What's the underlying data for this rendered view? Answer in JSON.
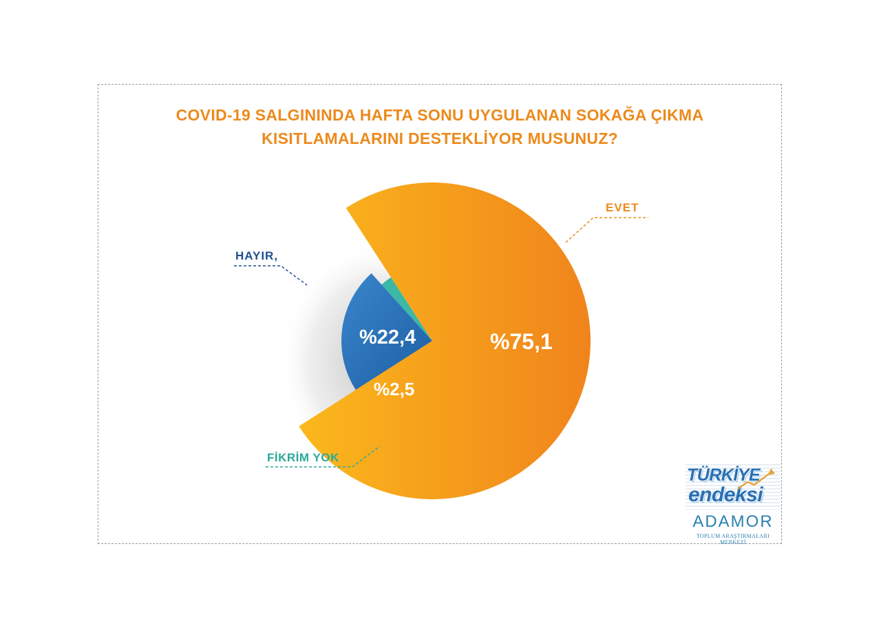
{
  "chart_data": {
    "type": "pie",
    "title": [
      "COVID-19 SALGININDA HAFTA SONU UYGULANAN SOKAĞA ÇIKMA",
      "KISITLAMALARINI DESTEKLİYOR MUSUNUZ?"
    ],
    "slices": [
      {
        "name": "EVET",
        "value": 75.1,
        "value_label": "%75,1",
        "color": "#f5a01e",
        "label_color": "#ec8a1c"
      },
      {
        "name": "HAYIR,",
        "value": 22.4,
        "value_label": "%22,4",
        "color": "#2a6eb2",
        "label_color": "#1f4f8f"
      },
      {
        "name": "FİKRİM YOK",
        "value": 2.5,
        "value_label": "%2,5",
        "color": "#3db8a6",
        "label_color": "#2aa999"
      }
    ]
  },
  "logo": {
    "line1": "TÜRKİYE",
    "line2": "endeksi",
    "brand": "ADAMOR",
    "subtitle": "TOPLUM ARAŞTIRMALARI MERKEZİ",
    "colors": {
      "primary": "#2b6fb3",
      "accent": "#e8a33a"
    }
  }
}
